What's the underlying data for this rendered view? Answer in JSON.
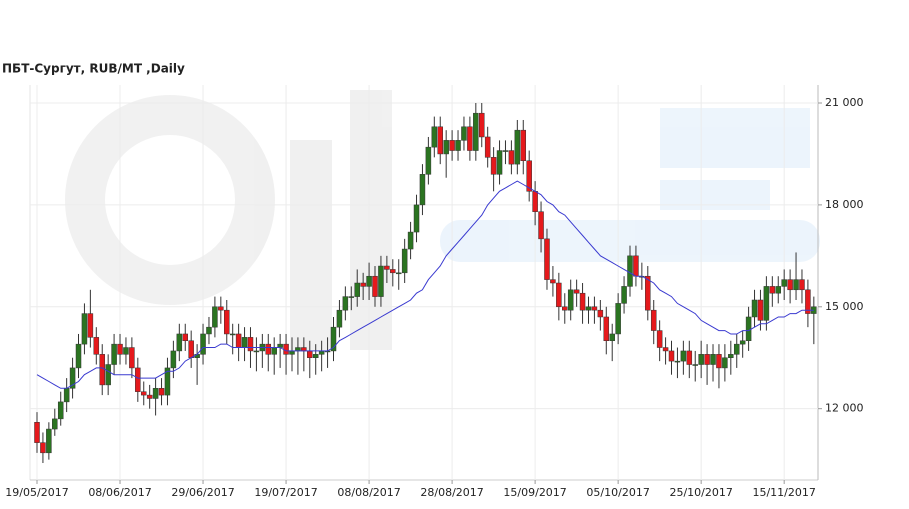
{
  "chart_data": {
    "type": "candlestick",
    "title": "ПБТ-Сургут,  RUB/MT ,Daily",
    "categories": [
      "19/05/2017",
      null,
      null,
      null,
      null,
      null,
      null,
      null,
      null,
      null,
      null,
      null,
      null,
      null,
      "08/06/2017",
      null,
      null,
      null,
      null,
      null,
      null,
      null,
      null,
      null,
      null,
      null,
      null,
      null,
      "29/06/2017",
      null,
      null,
      null,
      null,
      null,
      null,
      null,
      null,
      null,
      null,
      null,
      null,
      null,
      "19/07/2017",
      null,
      null,
      null,
      null,
      null,
      null,
      null,
      null,
      null,
      null,
      null,
      null,
      null,
      "08/08/2017",
      null,
      null,
      null,
      null,
      null,
      null,
      null,
      null,
      null,
      null,
      null,
      null,
      null,
      "28/08/2017",
      null,
      null,
      null,
      null,
      null,
      null,
      null,
      null,
      null,
      null,
      null,
      null,
      null,
      "15/09/2017",
      null,
      null,
      null,
      null,
      null,
      null,
      null,
      null,
      null,
      null,
      null,
      null,
      null,
      "05/10/2017",
      null,
      null,
      null,
      null,
      null,
      null,
      null,
      null,
      null,
      null,
      null,
      null,
      null,
      "25/10/2017",
      null,
      null,
      null,
      null,
      null,
      null,
      null,
      null,
      null,
      null,
      null,
      null,
      null,
      "15/11/2017",
      null,
      null,
      null,
      null,
      null
    ],
    "open": [
      11600,
      11000,
      10700,
      11400,
      11700,
      12200,
      12600,
      13200,
      13900,
      14800,
      14100,
      13600,
      12700,
      13300,
      13900,
      13600,
      13800,
      13200,
      12500,
      12400,
      12300,
      12600,
      12400,
      13200,
      13700,
      14200,
      14000,
      13500,
      13600,
      14200,
      14400,
      15000,
      14900,
      14200,
      14200,
      13800,
      14100,
      13700,
      13700,
      13900,
      13600,
      13800,
      13900,
      13600,
      13700,
      13800,
      13700,
      13500,
      13600,
      13700,
      13700,
      14400,
      14900,
      15300,
      15300,
      15700,
      15600,
      15900,
      15300,
      16200,
      16100,
      16000,
      16000,
      16700,
      17200,
      18000,
      18900,
      19700,
      20300,
      19500,
      19900,
      19600,
      19900,
      20300,
      19600,
      20700,
      20000,
      19400,
      18900,
      19600,
      19600,
      19200,
      20200,
      19300,
      18400,
      17800,
      17000,
      15800,
      15700,
      15000,
      14900,
      15500,
      15400,
      14900,
      15000,
      14900,
      14700,
      14000,
      14200,
      15100,
      15600,
      16500,
      15900,
      15900,
      14900,
      14300,
      13800,
      13700,
      13400,
      13400,
      13700,
      13300,
      13300,
      13600,
      13300,
      13600,
      13200,
      13500,
      13600,
      13900,
      14000,
      14700,
      15200,
      14600,
      15600,
      15400,
      15600,
      15800,
      15500,
      15800,
      15500,
      14800
    ],
    "high": [
      11900,
      11300,
      11600,
      12000,
      12500,
      12900,
      13500,
      14200,
      15100,
      15500,
      14400,
      13900,
      13600,
      14200,
      14200,
      14100,
      14100,
      13500,
      12800,
      12700,
      12900,
      12900,
      13500,
      14000,
      14500,
      14500,
      14300,
      13900,
      14500,
      14700,
      15300,
      15300,
      15200,
      14500,
      14500,
      14400,
      14400,
      14100,
      14200,
      14200,
      14100,
      14200,
      14200,
      14100,
      14100,
      14100,
      14000,
      13900,
      14000,
      14100,
      14700,
      15200,
      15600,
      15600,
      16100,
      16000,
      16300,
      16200,
      16500,
      16500,
      16400,
      16400,
      17000,
      17500,
      18300,
      19200,
      20000,
      20600,
      20600,
      20200,
      20200,
      20200,
      20600,
      20600,
      21000,
      21000,
      20300,
      19700,
      19900,
      19900,
      19900,
      20500,
      20500,
      19600,
      18700,
      18100,
      17300,
      16200,
      16000,
      15400,
      15800,
      15800,
      15700,
      15300,
      15300,
      15200,
      15000,
      14500,
      15400,
      15900,
      16800,
      16800,
      16300,
      16200,
      15200,
      14600,
      14100,
      14000,
      13800,
      14000,
      14000,
      13700,
      14000,
      13900,
      13900,
      13900,
      13900,
      14000,
      14200,
      14300,
      15000,
      15500,
      15500,
      15900,
      15900,
      15900,
      16100,
      16100,
      16600,
      16100,
      15800,
      15300
    ],
    "low": [
      10700,
      10400,
      10500,
      11200,
      11500,
      11900,
      12300,
      12900,
      13600,
      13800,
      13300,
      12400,
      12400,
      13000,
      13300,
      13300,
      12900,
      12200,
      12100,
      12000,
      11800,
      12100,
      12100,
      12900,
      13400,
      13700,
      13200,
      12700,
      13300,
      13900,
      14100,
      14500,
      13900,
      13600,
      13400,
      13400,
      13200,
      13100,
      13200,
      13100,
      13000,
      13200,
      13000,
      13100,
      13000,
      13100,
      12900,
      13000,
      13100,
      13200,
      13400,
      14100,
      14600,
      14900,
      15000,
      15200,
      15200,
      15000,
      15000,
      15700,
      15600,
      15500,
      15700,
      16400,
      16900,
      17700,
      18600,
      19400,
      19200,
      18800,
      19300,
      19300,
      19600,
      19300,
      19300,
      19700,
      19100,
      18400,
      18600,
      19200,
      18900,
      18900,
      18900,
      18100,
      17400,
      16600,
      15500,
      15300,
      14600,
      14500,
      14600,
      15000,
      14500,
      14500,
      14500,
      14300,
      13600,
      13400,
      13900,
      14800,
      15300,
      15600,
      15500,
      14600,
      13900,
      13400,
      13300,
      13000,
      12900,
      13000,
      12900,
      12800,
      12900,
      12700,
      12800,
      12600,
      12800,
      13000,
      13200,
      13500,
      13700,
      14400,
      14300,
      14300,
      15000,
      15100,
      15200,
      15100,
      15200,
      15100,
      14400,
      13900
    ],
    "close": [
      11000,
      10700,
      11400,
      11700,
      12200,
      12600,
      13200,
      13900,
      14800,
      14100,
      13600,
      12700,
      13300,
      13900,
      13600,
      13800,
      13200,
      12500,
      12400,
      12300,
      12600,
      12400,
      13200,
      13700,
      14200,
      14000,
      13500,
      13600,
      14200,
      14400,
      15000,
      14900,
      14200,
      14200,
      13800,
      14100,
      13700,
      13700,
      13900,
      13600,
      13800,
      13900,
      13600,
      13700,
      13800,
      13700,
      13500,
      13600,
      13700,
      13700,
      14400,
      14900,
      15300,
      15300,
      15700,
      15600,
      15900,
      15300,
      16200,
      16100,
      16000,
      16000,
      16700,
      17200,
      18000,
      18900,
      19700,
      20300,
      19500,
      19900,
      19600,
      19900,
      20300,
      19600,
      20700,
      20000,
      19400,
      18900,
      19600,
      19600,
      19200,
      20200,
      19300,
      18400,
      17800,
      17000,
      15800,
      15700,
      15000,
      14900,
      15500,
      15400,
      14900,
      15000,
      14900,
      14700,
      14000,
      14200,
      15100,
      15600,
      16500,
      15900,
      15900,
      14900,
      14300,
      13800,
      13700,
      13400,
      13400,
      13700,
      13300,
      13300,
      13600,
      13300,
      13600,
      13200,
      13500,
      13600,
      13900,
      14000,
      14700,
      15200,
      14600,
      15600,
      15400,
      15600,
      15800,
      15500,
      15800,
      15500,
      14800,
      15000
    ],
    "up_color": "#2b7421",
    "down_color": "#e5191c",
    "moving_average": {
      "color": "#3a3ad0",
      "values": [
        13000,
        12900,
        12800,
        12700,
        12600,
        12600,
        12700,
        12800,
        13000,
        13100,
        13200,
        13200,
        13100,
        13000,
        13000,
        13000,
        13000,
        12900,
        12900,
        12900,
        12900,
        13000,
        13100,
        13100,
        13200,
        13400,
        13500,
        13600,
        13800,
        13800,
        13800,
        13900,
        13900,
        13800,
        13800,
        13800,
        13800,
        13800,
        13800,
        13800,
        13800,
        13800,
        13700,
        13700,
        13700,
        13700,
        13700,
        13700,
        13700,
        13700,
        13800,
        14000,
        14100,
        14200,
        14300,
        14400,
        14500,
        14600,
        14700,
        14800,
        14900,
        15000,
        15100,
        15200,
        15400,
        15500,
        15800,
        16000,
        16200,
        16500,
        16700,
        16900,
        17100,
        17300,
        17500,
        17700,
        18000,
        18200,
        18400,
        18500,
        18600,
        18700,
        18600,
        18500,
        18400,
        18300,
        18100,
        18000,
        17800,
        17700,
        17500,
        17300,
        17100,
        16900,
        16700,
        16500,
        16400,
        16300,
        16200,
        16100,
        16000,
        15900,
        15900,
        15800,
        15700,
        15500,
        15400,
        15300,
        15100,
        15000,
        14900,
        14800,
        14600,
        14500,
        14400,
        14300,
        14300,
        14200,
        14200,
        14300,
        14300,
        14400,
        14500,
        14500,
        14600,
        14700,
        14700,
        14800,
        14800,
        14900,
        14900,
        14900
      ]
    },
    "ylim": [
      9900,
      21530
    ],
    "yticks": [
      {
        "value": 12000,
        "label": "12 000"
      },
      {
        "value": 15000,
        "label": "15 000"
      },
      {
        "value": 18000,
        "label": "18 000"
      },
      {
        "value": 21000,
        "label": "21 000"
      }
    ],
    "grid": true
  }
}
